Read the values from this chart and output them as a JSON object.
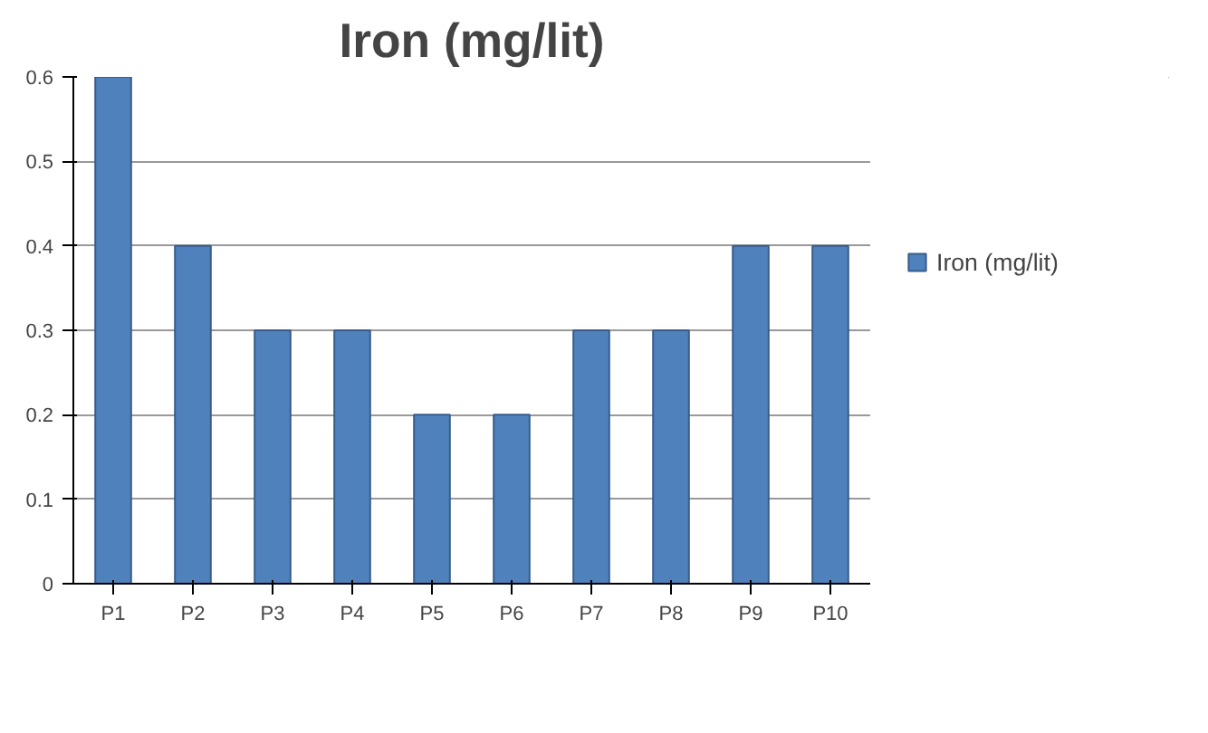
{
  "chart_data": {
    "type": "bar",
    "title": "Iron (mg/lit)",
    "categories": [
      "P1",
      "P2",
      "P3",
      "P4",
      "P5",
      "P6",
      "P7",
      "P8",
      "P9",
      "P10"
    ],
    "series": [
      {
        "name": "Iron (mg/lit)",
        "color": "#4f81bd",
        "values": [
          0.6,
          0.4,
          0.3,
          0.3,
          0.2,
          0.2,
          0.3,
          0.3,
          0.4,
          0.4
        ]
      }
    ],
    "ylim": [
      0,
      0.6
    ],
    "yticks": [
      0,
      0.1,
      0.2,
      0.3,
      0.4,
      0.5,
      0.6
    ],
    "grid": "y",
    "legend": "right"
  }
}
